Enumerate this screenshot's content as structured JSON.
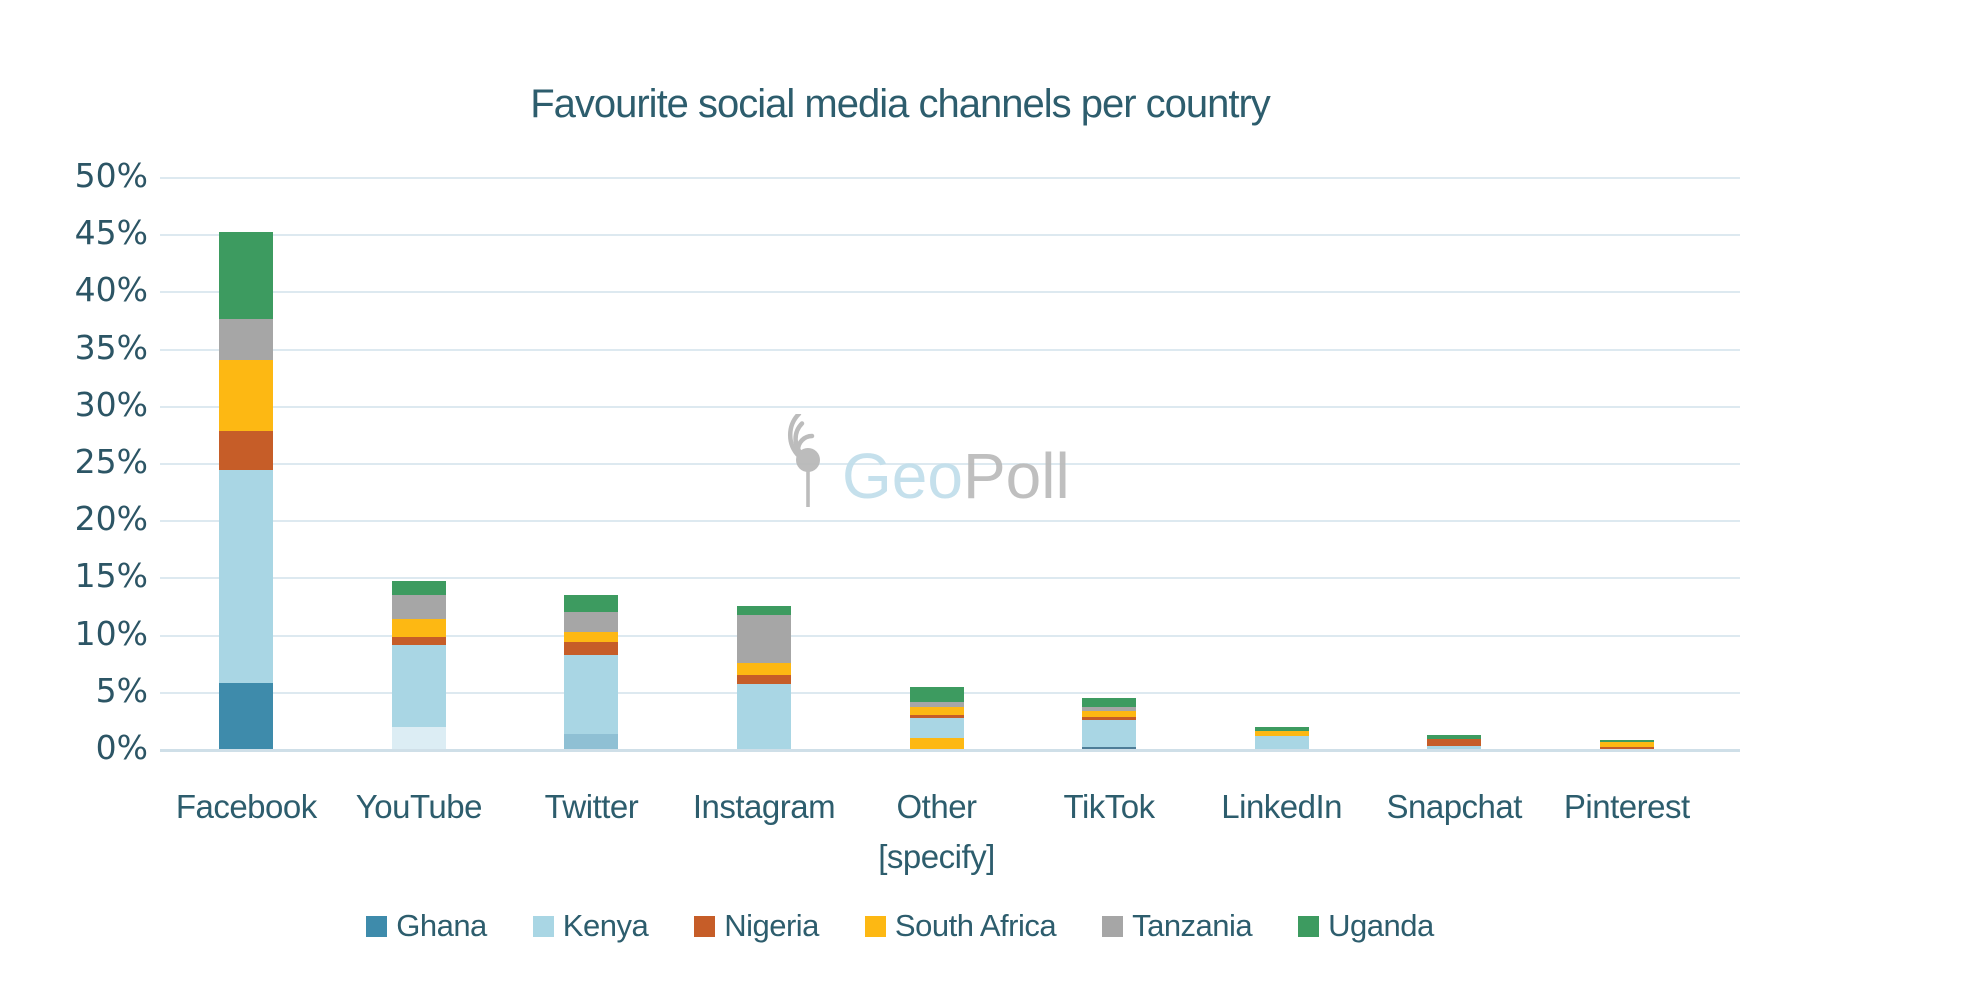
{
  "watermark": {
    "geo": "Geo",
    "poll": "Poll",
    "icon": "geopoll-pin-signal-icon",
    "geo_color": "#c2dfeb",
    "poll_color": "#bcbcbc"
  },
  "colors": {
    "background": "#ffffff",
    "gridline": "#dde9f0",
    "axis_line": "#cfdfe8",
    "text": "#2d5d6d"
  },
  "chart_data": {
    "type": "bar",
    "subtype": "stacked-vertical",
    "title": "Favourite social media channels per country",
    "xlabel": "",
    "ylabel": "",
    "ylim": [
      0,
      50
    ],
    "grid": true,
    "legend_position": "bottom",
    "y_ticks": [
      "50%",
      "45%",
      "40%",
      "35%",
      "30%",
      "25%",
      "20%",
      "15%",
      "10%",
      "5%",
      "0%"
    ],
    "categories": [
      "Facebook",
      "YouTube",
      "Twitter",
      "Instagram",
      "Other [specify]",
      "TikTok",
      "LinkedIn",
      "Snapchat",
      "Pinterest"
    ],
    "category_label_lines": [
      [
        "Facebook"
      ],
      [
        "YouTube"
      ],
      [
        "Twitter"
      ],
      [
        "Instagram"
      ],
      [
        "Other",
        "[specify]"
      ],
      [
        "TikTok"
      ],
      [
        "LinkedIn"
      ],
      [
        "Snapchat"
      ],
      [
        "Pinterest"
      ]
    ],
    "legend": [
      {
        "name": "Ghana",
        "color": "#3e8bab"
      },
      {
        "name": "Kenya",
        "color": "#a9d6e4"
      },
      {
        "name": "Nigeria",
        "color": "#c65d28"
      },
      {
        "name": "South Africa",
        "color": "#fdb813"
      },
      {
        "name": "Tanzania",
        "color": "#a6a6a6"
      },
      {
        "name": "Uganda",
        "color": "#3d9b60"
      }
    ],
    "series": [
      {
        "name": "Ghana",
        "values": [
          5.8,
          1.9,
          1.3,
          0,
          0,
          0.15,
          0,
          0,
          0
        ]
      },
      {
        "name": "Kenya",
        "values": [
          18.6,
          7.2,
          6.9,
          5.7,
          1.7,
          2.35,
          1.1,
          0.3,
          0
        ]
      },
      {
        "name": "Nigeria",
        "values": [
          3.4,
          0.7,
          1.2,
          0.8,
          0.3,
          0.3,
          0,
          0.6,
          0.2
        ]
      },
      {
        "name": "South Africa",
        "values": [
          6.2,
          1.55,
          0.8,
          1.0,
          1.7,
          0.5,
          0.5,
          0,
          0.45
        ]
      },
      {
        "name": "Tanzania",
        "values": [
          3.6,
          2.15,
          1.8,
          4.2,
          0.45,
          0.4,
          0,
          0,
          0
        ]
      },
      {
        "name": "Uganda",
        "values": [
          7.6,
          1.2,
          1.5,
          0.8,
          1.3,
          0.8,
          0.35,
          0.35,
          0.15
        ]
      }
    ],
    "bar_totals": [
      45.2,
      14.7,
      13.5,
      12.5,
      5.45,
      4.5,
      1.95,
      1.25,
      0.8
    ],
    "bars": [
      {
        "category": "Facebook",
        "segments_bottom_to_top": [
          {
            "name": "Ghana",
            "value": 5.8,
            "color": "#3e8bab"
          },
          {
            "name": "Kenya",
            "value": 18.6,
            "color": "#a9d6e4"
          },
          {
            "name": "Nigeria",
            "value": 3.4,
            "color": "#c65d28"
          },
          {
            "name": "South Africa",
            "value": 6.2,
            "color": "#fdb813"
          },
          {
            "name": "Tanzania",
            "value": 3.6,
            "color": "#a6a6a6"
          },
          {
            "name": "Uganda",
            "value": 7.6,
            "color": "#3d9b60"
          }
        ]
      },
      {
        "category": "YouTube",
        "segments_bottom_to_top": [
          {
            "name": "Ghana",
            "value": 1.9,
            "color": "#dcedf4"
          },
          {
            "name": "Kenya",
            "value": 7.2,
            "color": "#a9d6e4"
          },
          {
            "name": "Nigeria",
            "value": 0.7,
            "color": "#c65d28"
          },
          {
            "name": "South Africa",
            "value": 1.55,
            "color": "#fdb813"
          },
          {
            "name": "Tanzania",
            "value": 2.15,
            "color": "#a6a6a6"
          },
          {
            "name": "Uganda",
            "value": 1.2,
            "color": "#3d9b60"
          }
        ]
      },
      {
        "category": "Twitter",
        "segments_bottom_to_top": [
          {
            "name": "Ghana",
            "value": 1.3,
            "color": "#8fc0d4"
          },
          {
            "name": "Kenya",
            "value": 6.9,
            "color": "#a9d6e4"
          },
          {
            "name": "Nigeria",
            "value": 1.2,
            "color": "#c65d28"
          },
          {
            "name": "South Africa",
            "value": 0.8,
            "color": "#fdb813"
          },
          {
            "name": "Tanzania",
            "value": 1.8,
            "color": "#a6a6a6"
          },
          {
            "name": "Uganda",
            "value": 1.5,
            "color": "#3d9b60"
          }
        ]
      },
      {
        "category": "Instagram",
        "segments_bottom_to_top": [
          {
            "name": "Kenya",
            "value": 5.7,
            "color": "#a9d6e4"
          },
          {
            "name": "Nigeria",
            "value": 0.8,
            "color": "#c65d28"
          },
          {
            "name": "South Africa",
            "value": 1.0,
            "color": "#fdb813"
          },
          {
            "name": "Tanzania",
            "value": 4.2,
            "color": "#a6a6a6"
          },
          {
            "name": "Uganda",
            "value": 0.8,
            "color": "#3d9b60"
          }
        ]
      },
      {
        "category": "Other [specify]",
        "segments_bottom_to_top": [
          {
            "name": "South Africa",
            "value": 1.0,
            "color": "#fdb813"
          },
          {
            "name": "Kenya",
            "value": 1.7,
            "color": "#a9d6e4"
          },
          {
            "name": "Nigeria",
            "value": 0.3,
            "color": "#c65d28"
          },
          {
            "name": "South Africa",
            "value": 0.7,
            "color": "#fdb813"
          },
          {
            "name": "Tanzania",
            "value": 0.45,
            "color": "#a6a6a6"
          },
          {
            "name": "Uganda",
            "value": 1.3,
            "color": "#3d9b60"
          }
        ]
      },
      {
        "category": "TikTok",
        "segments_bottom_to_top": [
          {
            "name": "Ghana",
            "value": 0.15,
            "color": "#4e7d97"
          },
          {
            "name": "Kenya",
            "value": 2.35,
            "color": "#a9d6e4"
          },
          {
            "name": "Nigeria",
            "value": 0.3,
            "color": "#c65d28"
          },
          {
            "name": "South Africa",
            "value": 0.5,
            "color": "#fdb813"
          },
          {
            "name": "Tanzania",
            "value": 0.4,
            "color": "#a6a6a6"
          },
          {
            "name": "Uganda",
            "value": 0.8,
            "color": "#3d9b60"
          }
        ]
      },
      {
        "category": "LinkedIn",
        "segments_bottom_to_top": [
          {
            "name": "Kenya",
            "value": 1.1,
            "color": "#a9d6e4"
          },
          {
            "name": "South Africa",
            "value": 0.5,
            "color": "#fdb813"
          },
          {
            "name": "Uganda",
            "value": 0.35,
            "color": "#3d9b60"
          }
        ]
      },
      {
        "category": "Snapchat",
        "segments_bottom_to_top": [
          {
            "name": "Kenya",
            "value": 0.3,
            "color": "#a9d6e4"
          },
          {
            "name": "Nigeria",
            "value": 0.6,
            "color": "#c65d28"
          },
          {
            "name": "Uganda",
            "value": 0.35,
            "color": "#3d9b60"
          }
        ]
      },
      {
        "category": "Pinterest",
        "segments_bottom_to_top": [
          {
            "name": "Nigeria",
            "value": 0.2,
            "color": "#c65d28"
          },
          {
            "name": "South Africa",
            "value": 0.45,
            "color": "#fdb813"
          },
          {
            "name": "Uganda",
            "value": 0.15,
            "color": "#3d9b60"
          }
        ]
      }
    ]
  }
}
